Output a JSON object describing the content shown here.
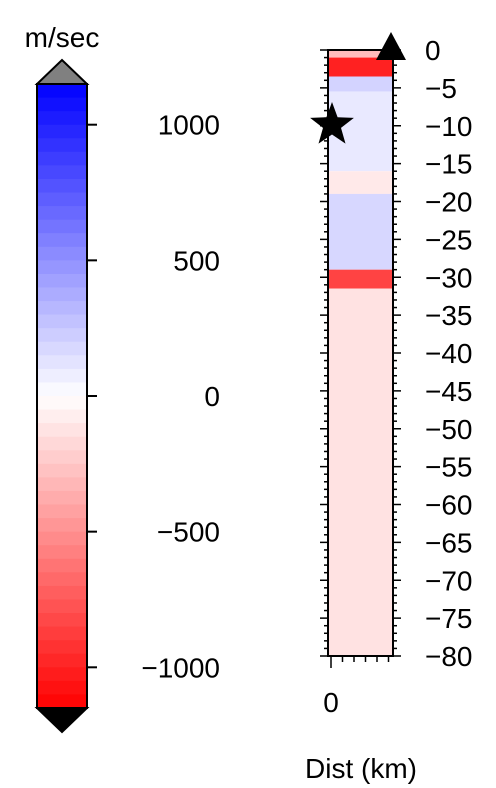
{
  "chart_data": [
    {
      "type": "heatmap",
      "title": "",
      "colorbar_unit": "m/sec",
      "clim": [
        -1150,
        1150
      ],
      "ticks": [
        1000,
        500,
        0,
        -500,
        -1000
      ],
      "tick_labels": [
        "1000",
        "500",
        "0",
        "−500",
        "−1000"
      ],
      "colormap": {
        "low": "#ff0000",
        "mid": "#ffffff",
        "high": "#0000ff"
      },
      "over_color": "#808080",
      "under_color": "#000000"
    },
    {
      "type": "heatmap",
      "xlabel": "Dist (km)",
      "x_ticks": [
        0
      ],
      "x_tick_labels": [
        "0"
      ],
      "ylim": [
        -80,
        0
      ],
      "y_ticks": [
        0,
        -5,
        -10,
        -15,
        -20,
        -25,
        -30,
        -35,
        -40,
        -45,
        -50,
        -55,
        -60,
        -65,
        -70,
        -75,
        -80
      ],
      "y_tick_labels": [
        "0",
        "−5",
        "−10",
        "−15",
        "−20",
        "−25",
        "−30",
        "−35",
        "−40",
        "−45",
        "−50",
        "−55",
        "−60",
        "−65",
        "−70",
        "−75",
        "−80"
      ],
      "depth_layers": [
        {
          "top": 0,
          "bottom": -1,
          "value": -300
        },
        {
          "top": -1,
          "bottom": -3.5,
          "value": -1000
        },
        {
          "top": -3.5,
          "bottom": -5.5,
          "value": 200
        },
        {
          "top": -5.5,
          "bottom": -16,
          "value": 100
        },
        {
          "top": -16,
          "bottom": -19,
          "value": -100
        },
        {
          "top": -19,
          "bottom": -29,
          "value": 180
        },
        {
          "top": -29,
          "bottom": -31.5,
          "value": -850
        },
        {
          "top": -31.5,
          "bottom": -80,
          "value": -130
        }
      ],
      "markers": [
        {
          "symbol": "star",
          "depth": -9.5,
          "color": "#000000"
        },
        {
          "symbol": "triangle",
          "depth": 0,
          "color": "#000000"
        }
      ]
    }
  ]
}
